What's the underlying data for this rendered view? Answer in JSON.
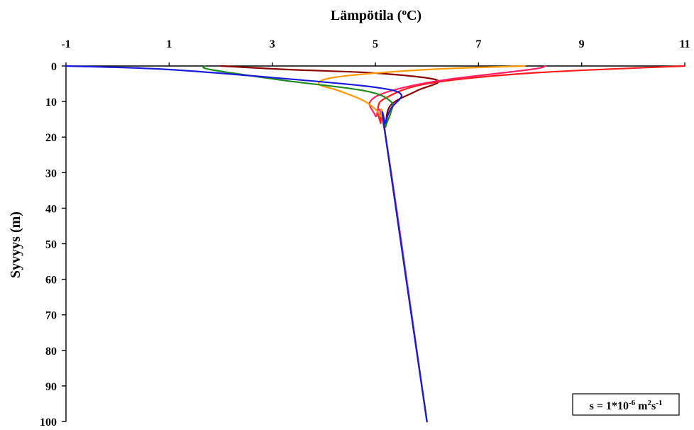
{
  "chart_data": {
    "type": "line",
    "title": "",
    "xlabel": "Lämpötila (°C)",
    "xlabel_parts": {
      "pre": "Lämpötila (",
      "sup": "o",
      "post": "C)"
    },
    "ylabel": "Syvyys (m)",
    "xlim": [
      -1,
      11
    ],
    "ylim": [
      0,
      100
    ],
    "x_axis_position": "top",
    "y_axis_inverted": true,
    "x_ticks": [
      "-1",
      "1",
      "3",
      "5",
      "7",
      "9",
      "11"
    ],
    "y_ticks": [
      "0",
      "10",
      "20",
      "30",
      "40",
      "50",
      "60",
      "70",
      "80",
      "90",
      "100"
    ],
    "grid": false,
    "legend": "none",
    "annotation": {
      "text": "s = 1*10-6 m2s-1",
      "parts": [
        {
          "t": "s = 1*10",
          "sup": false
        },
        {
          "t": "-6",
          "sup": true
        },
        {
          "t": " m",
          "sup": false
        },
        {
          "t": "2",
          "sup": true
        },
        {
          "t": "s",
          "sup": false
        },
        {
          "t": "-1",
          "sup": true
        }
      ]
    },
    "series": [
      {
        "color": "#8b0000",
        "points": [
          [
            2.0,
            0
          ],
          [
            3.3,
            1
          ],
          [
            5.0,
            2
          ],
          [
            6.2,
            4
          ],
          [
            5.8,
            7
          ],
          [
            5.3,
            11
          ],
          [
            5.2,
            17
          ],
          [
            5.2,
            20
          ],
          [
            6.0,
            100
          ]
        ]
      },
      {
        "color": "#ff1a1a",
        "points": [
          [
            11.0,
            0
          ],
          [
            8.0,
            2
          ],
          [
            6.0,
            5
          ],
          [
            5.2,
            9
          ],
          [
            5.05,
            12
          ],
          [
            5.1,
            16
          ],
          [
            5.2,
            20
          ],
          [
            6.0,
            100
          ]
        ]
      },
      {
        "color": "#ff2266",
        "points": [
          [
            8.3,
            0
          ],
          [
            8.0,
            1
          ],
          [
            6.3,
            4
          ],
          [
            5.3,
            7
          ],
          [
            4.9,
            10
          ],
          [
            5.0,
            14
          ],
          [
            5.2,
            20
          ],
          [
            6.0,
            100
          ]
        ]
      },
      {
        "color": "#ff9900",
        "points": [
          [
            7.9,
            0
          ],
          [
            6.0,
            1
          ],
          [
            4.3,
            3
          ],
          [
            3.9,
            5
          ],
          [
            4.3,
            7
          ],
          [
            4.8,
            10
          ],
          [
            5.1,
            14
          ],
          [
            5.2,
            20
          ],
          [
            6.0,
            100
          ]
        ]
      },
      {
        "color": "#1f8a1f",
        "points": [
          [
            1.7,
            0
          ],
          [
            1.8,
            1
          ],
          [
            3.2,
            4
          ],
          [
            4.8,
            7
          ],
          [
            5.3,
            10
          ],
          [
            5.3,
            13
          ],
          [
            5.2,
            17
          ],
          [
            5.2,
            20
          ],
          [
            6.0,
            100
          ]
        ]
      },
      {
        "color": "#1a1adb",
        "points": [
          [
            -1.0,
            0
          ],
          [
            1.0,
            1
          ],
          [
            3.6,
            4
          ],
          [
            5.0,
            6
          ],
          [
            5.5,
            8
          ],
          [
            5.3,
            12
          ],
          [
            5.2,
            16
          ],
          [
            5.2,
            20
          ],
          [
            6.0,
            100
          ]
        ]
      }
    ]
  }
}
